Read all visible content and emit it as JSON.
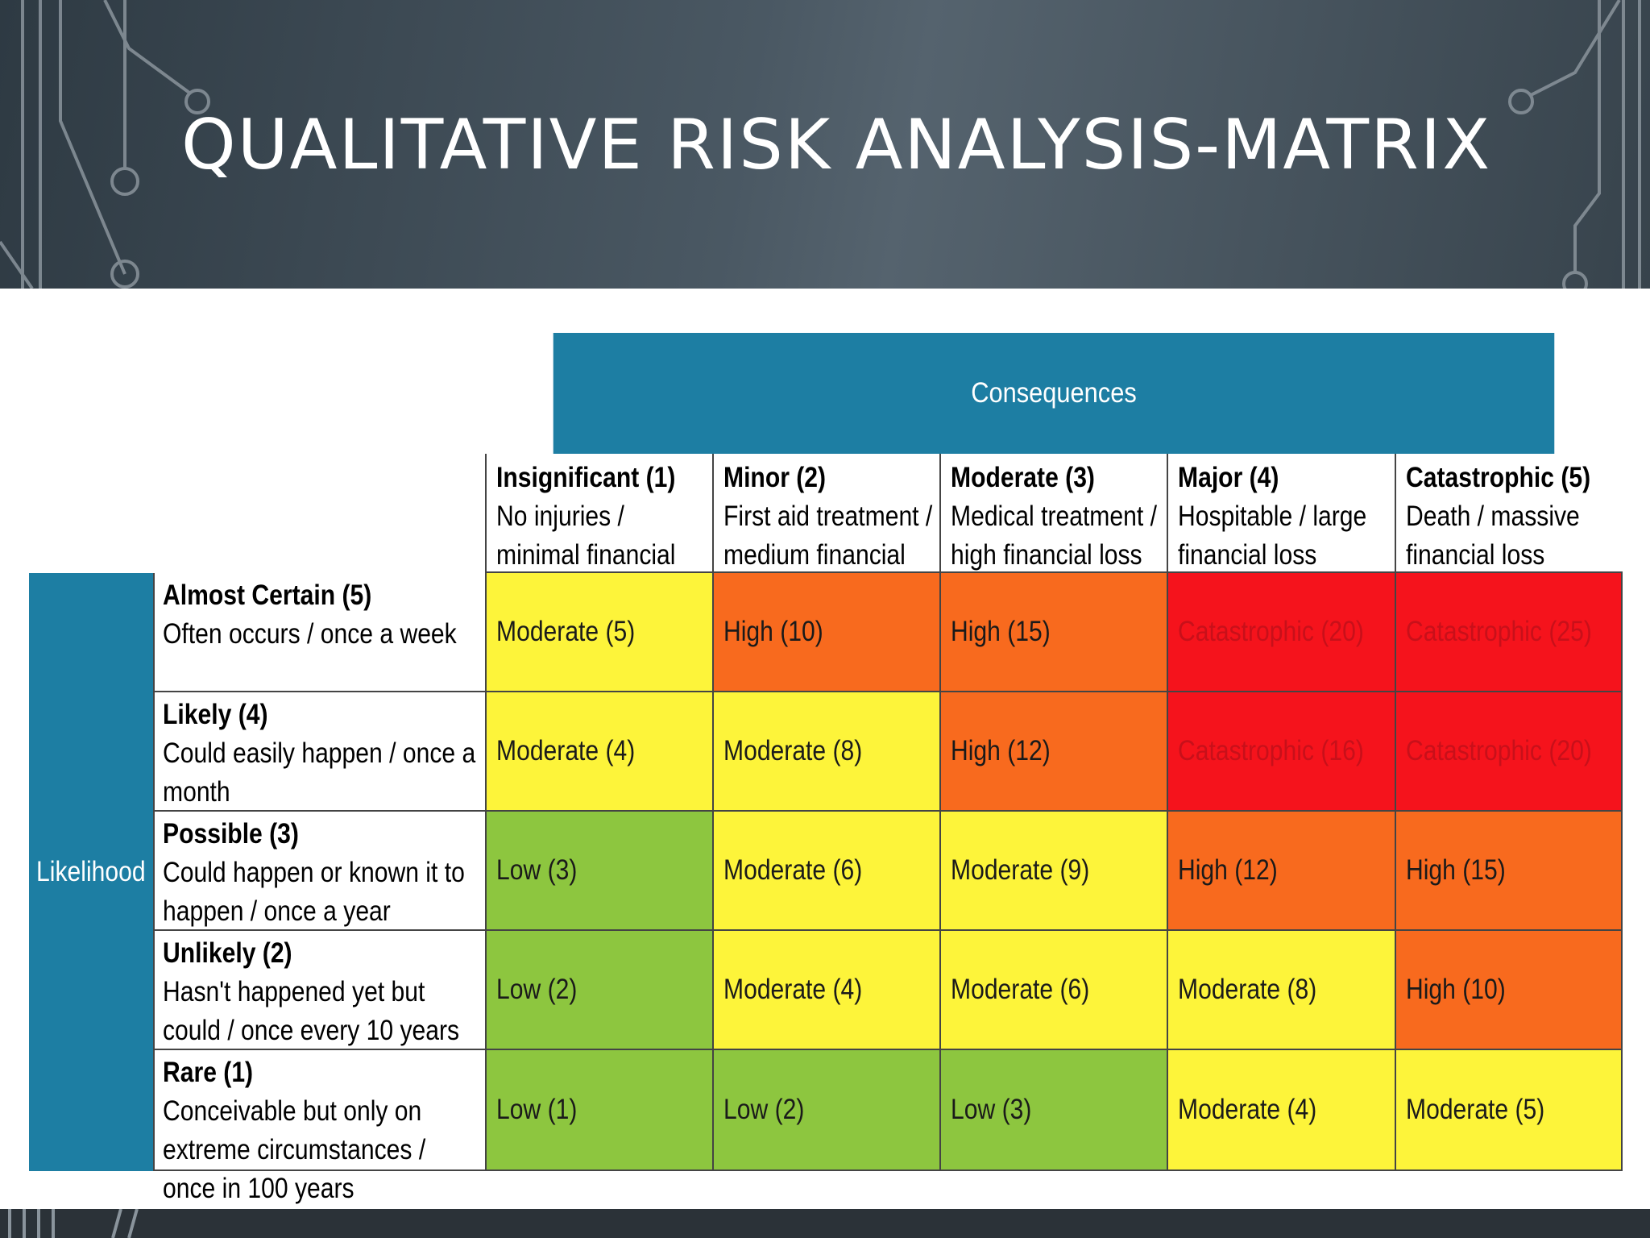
{
  "title": "QUALITATIVE RISK ANALYSIS-MATRIX",
  "matrix": {
    "consequences_label": "Consequences",
    "likelihood_label": "Likelihood",
    "columns": [
      {
        "title": "Insignificant (1)",
        "desc": "No injuries / minimal financial loss"
      },
      {
        "title": "Minor (2)",
        "desc": "First aid treatment / medium financial loss"
      },
      {
        "title": "Moderate (3)",
        "desc": "Medical treatment / high financial loss"
      },
      {
        "title": "Major (4)",
        "desc": "Hospitable / large financial loss"
      },
      {
        "title": "Catastrophic (5)",
        "desc": "Death / massive financial loss"
      }
    ],
    "rows": [
      {
        "title": "Almost Certain (5)",
        "desc": "Often occurs / once a week",
        "cells": [
          "Moderate (5)",
          "High (10)",
          "High (15)",
          "Catastrophic (20)",
          "Catastrophic (25)"
        ],
        "levels": [
          "moderate",
          "high",
          "high",
          "catastrophic",
          "catastrophic"
        ]
      },
      {
        "title": "Likely (4)",
        "desc": "Could easily happen / once a month",
        "cells": [
          "Moderate (4)",
          "Moderate (8)",
          "High (12)",
          "Catastrophic (16)",
          "Catastrophic (20)"
        ],
        "levels": [
          "moderate",
          "moderate",
          "high",
          "catastrophic",
          "catastrophic"
        ]
      },
      {
        "title": "Possible (3)",
        "desc": "Could happen or known it to happen / once a year",
        "cells": [
          "Low (3)",
          "Moderate (6)",
          "Moderate (9)",
          "High (12)",
          "High (15)"
        ],
        "levels": [
          "low",
          "moderate",
          "moderate",
          "high",
          "high"
        ]
      },
      {
        "title": "Unlikely (2)",
        "desc": "Hasn't happened yet but could / once every 10 years",
        "cells": [
          "Low (2)",
          "Moderate (4)",
          "Moderate (6)",
          "Moderate (8)",
          "High (10)"
        ],
        "levels": [
          "low",
          "moderate",
          "moderate",
          "moderate",
          "high"
        ]
      },
      {
        "title": "Rare (1)",
        "desc": "Conceivable but only on extreme circumstances / once in 100 years",
        "cells": [
          "Low (1)",
          "Low (2)",
          "Low (3)",
          "Moderate (4)",
          "Moderate (5)"
        ],
        "levels": [
          "low",
          "low",
          "low",
          "moderate",
          "moderate"
        ]
      }
    ]
  },
  "colors": {
    "low": "#8dc63f",
    "moderate": "#fdf43a",
    "high": "#f86a1e",
    "catastrophic": "#f5131c",
    "header_blue": "#1d7ea3"
  }
}
